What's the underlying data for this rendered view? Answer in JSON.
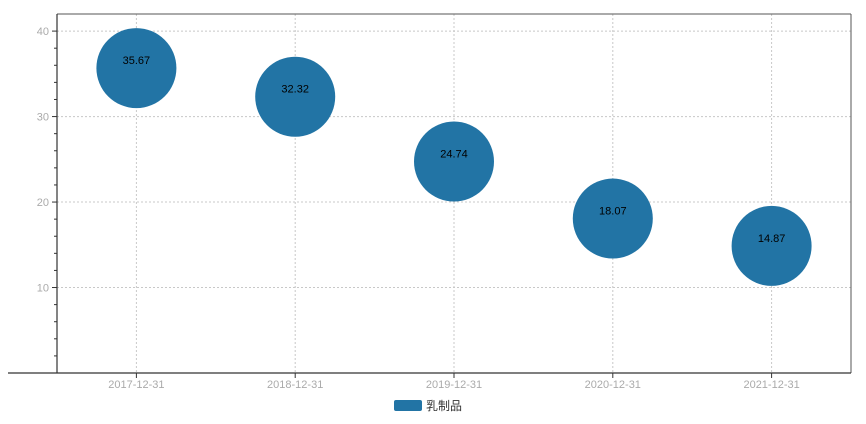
{
  "chart_data": {
    "type": "scatter",
    "x": [
      "2017-12-31",
      "2018-12-31",
      "2019-12-31",
      "2020-12-31",
      "2021-12-31"
    ],
    "series": [
      {
        "name": "乳制品",
        "values": [
          35.67,
          32.32,
          24.74,
          18.07,
          14.87
        ],
        "labels": [
          "35.67",
          "32.32",
          "24.74",
          "18.07",
          "14.87"
        ],
        "color": "#2274a5"
      }
    ],
    "ylim": [
      0,
      42
    ],
    "yticks": [
      "10",
      "20",
      "30",
      "40"
    ],
    "grid": true,
    "legend_position": "bottom-center"
  }
}
